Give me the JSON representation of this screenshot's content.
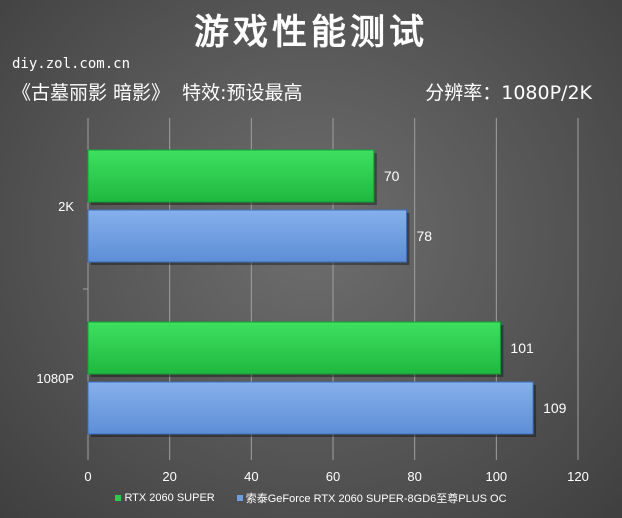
{
  "title": "游戏性能测试",
  "site": "diy.zol.com.cn",
  "subtitle_left": "《古墓丽影 暗影》  特效:预设最高",
  "subtitle_right": "分辨率：1080P/2K",
  "colors": {
    "series1": "#2ecc4a",
    "series1_dark": "#12a034",
    "series2": "#6f9de0",
    "series2_dark": "#3f6fb5",
    "grid": "#a0a0a0",
    "text": "#ffffff"
  },
  "chart_data": {
    "type": "bar",
    "orientation": "horizontal",
    "categories": [
      "2K",
      "1080P"
    ],
    "series": [
      {
        "name": "RTX 2060 SUPER",
        "values": [
          70,
          101
        ]
      },
      {
        "name": "索泰GeForce RTX 2060 SUPER-8GD6至尊PLUS OC",
        "values": [
          78,
          109
        ]
      }
    ],
    "xlim": [
      0,
      120
    ],
    "xticks": [
      0,
      20,
      40,
      60,
      80,
      100,
      120
    ],
    "grid": "vertical",
    "legend": "bottom"
  }
}
